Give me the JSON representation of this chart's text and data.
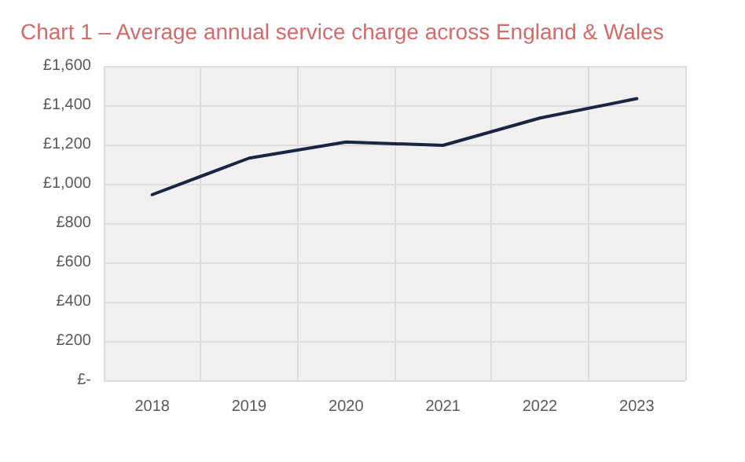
{
  "chart_data": {
    "type": "line",
    "title": "Chart 1 – Average annual service charge across England & Wales",
    "categories": [
      "2018",
      "2019",
      "2020",
      "2021",
      "2022",
      "2023"
    ],
    "series": [
      {
        "color": "#1b2541",
        "values": [
          945,
          1131,
          1213,
          1196,
          1335,
          1434
        ]
      }
    ],
    "ylim": [
      0,
      1600
    ],
    "yticks": [
      {
        "value": 0,
        "label": "£-"
      },
      {
        "value": 200,
        "label": "£200"
      },
      {
        "value": 400,
        "label": "£400"
      },
      {
        "value": 600,
        "label": "£600"
      },
      {
        "value": 800,
        "label": "£800"
      },
      {
        "value": 1000,
        "label": "£1,000"
      },
      {
        "value": 1200,
        "label": "£1,200"
      },
      {
        "value": 1400,
        "label": "£1,400"
      },
      {
        "value": 1600,
        "label": "£1,600"
      }
    ],
    "grid": true,
    "marker": "none",
    "line_style": "solid"
  }
}
